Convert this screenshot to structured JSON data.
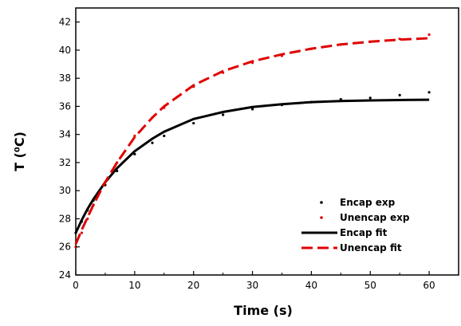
{
  "chart_data": {
    "type": "line",
    "xlabel": "Time (s)",
    "ylabel": "T (⁰C)",
    "xlim": [
      0,
      65
    ],
    "ylim": [
      24,
      43
    ],
    "x_ticks": [
      0,
      10,
      20,
      30,
      40,
      50,
      60
    ],
    "y_ticks": [
      24,
      26,
      28,
      30,
      32,
      34,
      36,
      38,
      40,
      42
    ],
    "legend_position": "bottom-right",
    "series": [
      {
        "name": "Encap exp",
        "style": "dots",
        "color": "#000000",
        "x": [
          0,
          1,
          2,
          3,
          5,
          7,
          10,
          13,
          15,
          20,
          25,
          30,
          35,
          40,
          45,
          50,
          55,
          60
        ],
        "y": [
          27.0,
          27.8,
          28.6,
          29.3,
          30.4,
          31.4,
          32.6,
          33.4,
          33.9,
          34.8,
          35.4,
          35.8,
          36.1,
          36.3,
          36.5,
          36.6,
          36.8,
          37.0
        ]
      },
      {
        "name": "Unencap exp",
        "style": "dots",
        "color": "#e00000",
        "x": [
          0,
          1,
          2,
          3,
          5,
          7,
          10,
          13,
          15,
          20,
          25,
          30,
          35,
          40,
          45,
          50,
          55,
          60
        ],
        "y": [
          26.0,
          27.0,
          28.0,
          29.0,
          30.6,
          32.0,
          33.9,
          35.2,
          35.9,
          37.4,
          38.4,
          39.1,
          39.6,
          40.1,
          40.4,
          40.6,
          40.8,
          41.1
        ]
      },
      {
        "name": "Encap fit",
        "style": "solid",
        "color": "#000000",
        "x": [
          0,
          1,
          2,
          3,
          5,
          7,
          10,
          13,
          15,
          20,
          25,
          30,
          35,
          40,
          45,
          50,
          55,
          60
        ],
        "y": [
          27.0,
          27.9,
          28.7,
          29.4,
          30.6,
          31.6,
          32.8,
          33.7,
          34.2,
          35.1,
          35.6,
          35.95,
          36.15,
          36.3,
          36.38,
          36.42,
          36.45,
          36.47
        ]
      },
      {
        "name": "Unencap fit",
        "style": "dashed",
        "color": "#e00000",
        "x": [
          0,
          1,
          2,
          3,
          5,
          7,
          10,
          13,
          15,
          20,
          25,
          30,
          35,
          40,
          45,
          50,
          55,
          60
        ],
        "y": [
          26.2,
          27.2,
          28.1,
          29.0,
          30.6,
          32.0,
          33.8,
          35.2,
          36.0,
          37.5,
          38.5,
          39.2,
          39.7,
          40.1,
          40.4,
          40.6,
          40.75,
          40.85
        ]
      }
    ]
  }
}
